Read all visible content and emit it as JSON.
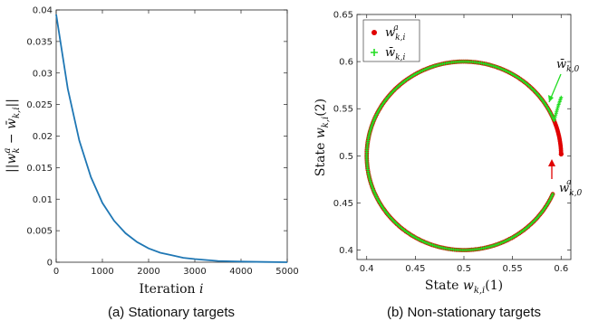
{
  "chart_data": [
    {
      "type": "line",
      "xlabel_text": "Iteration",
      "xlabel_var": "i",
      "ylabel": "||w_k^a − w̄_{k,i}||",
      "xlim": [
        0,
        5000
      ],
      "ylim": [
        0,
        0.04
      ],
      "xticks": [
        "0",
        "1000",
        "2000",
        "3000",
        "4000",
        "5000"
      ],
      "yticks": [
        "0",
        "0.005",
        "0.01",
        "0.015",
        "0.02",
        "0.025",
        "0.03",
        "0.035",
        "0.04"
      ],
      "series": [
        {
          "color": "#1f77b4",
          "x": [
            0,
            250,
            500,
            750,
            1000,
            1250,
            1500,
            1750,
            2000,
            2250,
            2500,
            2750,
            3000,
            3500,
            4000,
            4500,
            5000
          ],
          "values": [
            0.0393,
            0.0275,
            0.0193,
            0.0135,
            0.0094,
            0.0066,
            0.0046,
            0.0032,
            0.0022,
            0.0015,
            0.0011,
            0.0007,
            0.0005,
            0.0002,
            0.0001,
            5e-05,
            0.0
          ]
        }
      ],
      "caption": "(a) Stationary targets"
    },
    {
      "type": "scatter",
      "xlabel": "State w_{k,i}(1)",
      "ylabel": "State w_{k,i}(2)",
      "xlim": [
        0.39,
        0.61
      ],
      "ylim": [
        0.39,
        0.65
      ],
      "xticks": [
        "0.4",
        "0.45",
        "0.5",
        "0.55",
        "0.6"
      ],
      "yticks": [
        "0.4",
        "0.45",
        "0.5",
        "0.55",
        "0.6",
        "0.65"
      ],
      "circle": {
        "center": [
          0.5,
          0.5
        ],
        "radius": 0.1
      },
      "series": [
        {
          "legend": "w^a_{k,i}",
          "marker": "dot",
          "color": "#e00000",
          "start": [
            0.6,
            0.502
          ],
          "arc_from_deg": 1,
          "arc_to_deg": 336
        },
        {
          "legend": "w̄_{k,i}",
          "marker": "plus",
          "color": "#22dd22",
          "start": [
            0.6,
            0.562
          ],
          "arc_from_deg": 22,
          "arc_to_deg": 336
        }
      ],
      "annotations": [
        {
          "text": "w̄_{k,0}",
          "point": [
            0.6,
            0.562
          ]
        },
        {
          "text": "w^a_{k,0}",
          "point": [
            0.6,
            0.502
          ]
        }
      ],
      "legend_position": "top-left",
      "caption": "(b) Non-stationary targets"
    }
  ]
}
